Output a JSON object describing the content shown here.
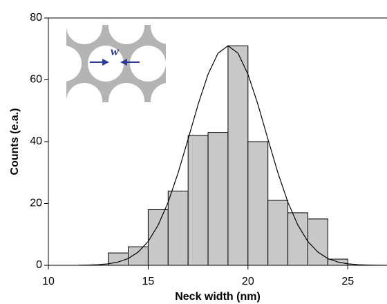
{
  "chart_data": {
    "type": "histogram",
    "xlabel": "Neck width (nm)",
    "ylabel": "Counts (e.a.)",
    "bins": [
      13,
      14,
      15,
      16,
      17,
      18,
      19,
      20,
      21,
      22,
      23,
      24,
      25
    ],
    "values": [
      4,
      6,
      18,
      24,
      42,
      43,
      71,
      40,
      21,
      17,
      15,
      2
    ],
    "color": "#c8c8c8",
    "fit": {
      "x": [
        11.5,
        12,
        12.5,
        13,
        13.5,
        14,
        14.5,
        15,
        15.5,
        16,
        16.5,
        17,
        17.5,
        18,
        18.5,
        19,
        19.5,
        20,
        20.5,
        21,
        21.5,
        22,
        22.5,
        23,
        23.5,
        24,
        24.5,
        25,
        25.5,
        26,
        26.5,
        27
      ],
      "values": [
        0.03,
        0.08,
        0.2,
        0.48,
        1.07,
        2.2,
        4.3,
        7.7,
        13.0,
        20.4,
        29.9,
        40.8,
        52.0,
        61.8,
        68.6,
        71,
        68.6,
        61.8,
        52.0,
        40.8,
        29.9,
        20.4,
        13.0,
        7.7,
        4.3,
        2.2,
        1.07,
        0.48,
        0.2,
        0.08,
        0.03,
        0.01
      ],
      "color": "#000000"
    },
    "annotations": [
      "w"
    ],
    "xlim": [
      10,
      27
    ],
    "ylim": [
      0,
      80
    ],
    "xticks": [
      10,
      15,
      20,
      25
    ],
    "yticks": [
      0,
      20,
      40,
      60,
      80
    ]
  }
}
